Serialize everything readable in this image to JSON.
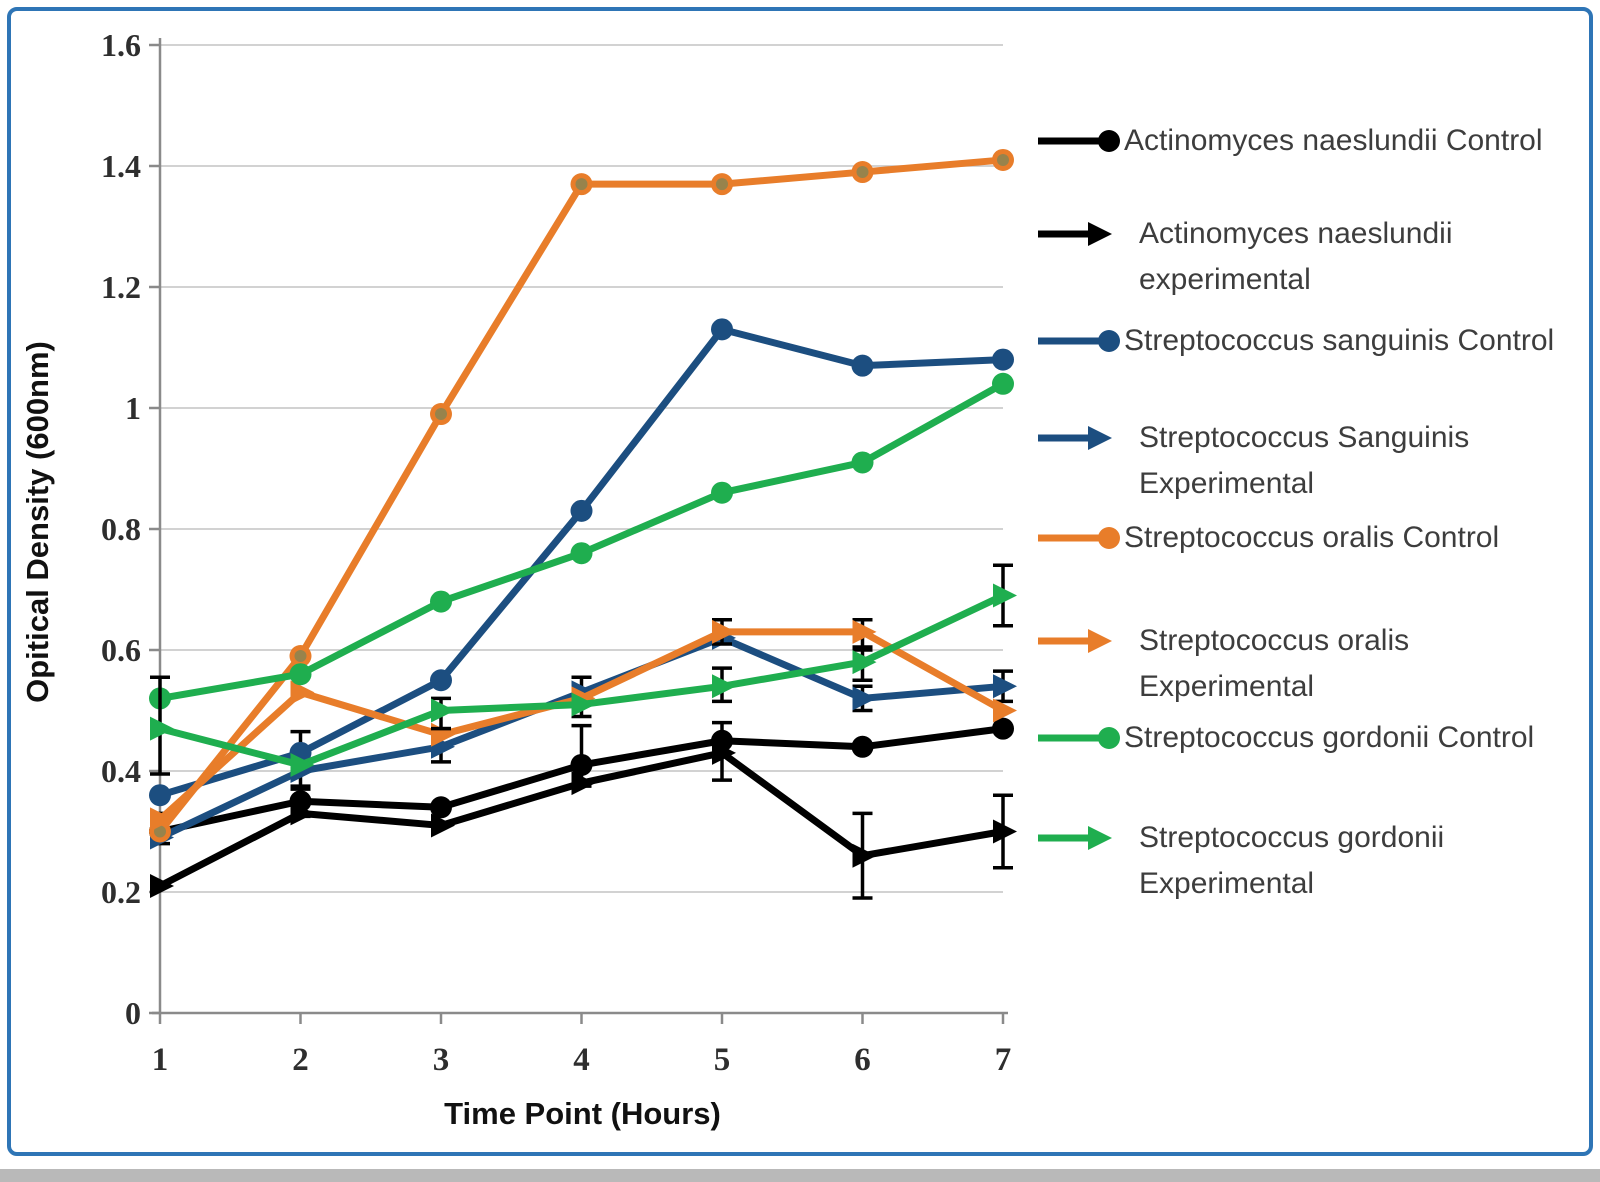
{
  "window": {
    "background": "#ffffff",
    "border_color": "#2E75B6",
    "bottom_shadow_color": "#b9b9b9"
  },
  "chart_data": {
    "type": "line",
    "title": "",
    "xlabel": "Time Point (Hours)",
    "ylabel": "Opitical Density (600nm)",
    "x": [
      1,
      2,
      3,
      4,
      5,
      6,
      7
    ],
    "x_tick_labels": [
      "1",
      "2",
      "3",
      "4",
      "5",
      "6",
      "7"
    ],
    "y_ticks": [
      0,
      0.2,
      0.4,
      0.6,
      0.8,
      1,
      1.2,
      1.4,
      1.6
    ],
    "y_tick_labels": [
      "0",
      "0.2",
      "0.4",
      "0.6",
      "0.8",
      "1",
      "1.2",
      "1.4",
      "1.6"
    ],
    "ylim": [
      0,
      1.6
    ],
    "grid": "horizontal",
    "legend_position": "right",
    "axis_color": "#8A8A8A",
    "gridline_color": "#C3C3C3",
    "error_bar_color": "#000000",
    "series": [
      {
        "name": "Actinomyces naeslundii Control",
        "color": "#000000",
        "marker": "circle",
        "values": [
          0.3,
          0.35,
          0.34,
          0.41,
          0.45,
          0.44,
          0.47
        ],
        "error_bars": [
          {
            "x": 1,
            "low": 0.28,
            "high": 0.33
          },
          {
            "x": 2,
            "low": 0.325,
            "high": 0.375
          },
          {
            "x": 4,
            "low": 0.375,
            "high": 0.475
          },
          {
            "x": 5,
            "low": 0.385,
            "high": 0.48
          }
        ]
      },
      {
        "name": "Actinomyces naeslundii experimental",
        "color": "#000000",
        "marker": "arrow",
        "values": [
          0.21,
          0.33,
          0.31,
          0.38,
          0.43,
          0.26,
          0.3
        ],
        "error_bars": [
          {
            "x": 6,
            "low": 0.19,
            "high": 0.33
          },
          {
            "x": 7,
            "low": 0.24,
            "high": 0.36
          }
        ]
      },
      {
        "name": "Streptococcus sanguinis Control",
        "color": "#1C4E80",
        "marker": "circle",
        "values": [
          0.36,
          0.43,
          0.55,
          0.83,
          1.13,
          1.07,
          1.08
        ],
        "error_bars": [
          {
            "x": 2,
            "low": 0.37,
            "high": 0.465
          }
        ]
      },
      {
        "name": "Streptococcus Sanguinis Experimental",
        "color": "#1C4E80",
        "marker": "arrow",
        "values": [
          0.29,
          0.4,
          0.44,
          0.53,
          0.62,
          0.52,
          0.54
        ],
        "error_bars": [
          {
            "x": 3,
            "low": 0.415,
            "high": 0.47
          },
          {
            "x": 4,
            "low": 0.49,
            "high": 0.555
          },
          {
            "x": 6,
            "low": 0.5,
            "high": 0.54
          },
          {
            "x": 7,
            "low": 0.515,
            "high": 0.565
          }
        ]
      },
      {
        "name": "Streptococcus oralis Control",
        "color": "#E87D2A",
        "marker": "circle",
        "marker_inner": "#97834C",
        "values": [
          0.3,
          0.59,
          0.99,
          1.37,
          1.37,
          1.39,
          1.41
        ],
        "error_bars": []
      },
      {
        "name": "Streptococcus oralis Experimental",
        "color": "#E87D2A",
        "marker": "arrow",
        "values": [
          0.32,
          0.53,
          0.46,
          0.52,
          0.63,
          0.63,
          0.5
        ],
        "error_bars": [
          {
            "x": 5,
            "low": 0.61,
            "high": 0.65
          },
          {
            "x": 6,
            "low": 0.605,
            "high": 0.65
          }
        ]
      },
      {
        "name": "Streptococcus gordonii Control",
        "color": "#1FAE4F",
        "marker": "circle",
        "values": [
          0.52,
          0.56,
          0.68,
          0.76,
          0.86,
          0.91,
          1.04
        ],
        "error_bars": []
      },
      {
        "name": "Streptococcus gordonii Experimental",
        "color": "#1FAE4F",
        "marker": "arrow",
        "values": [
          0.47,
          0.41,
          0.5,
          0.51,
          0.54,
          0.58,
          0.69
        ],
        "error_bars": [
          {
            "x": 1,
            "low": 0.395,
            "high": 0.555
          },
          {
            "x": 3,
            "low": 0.47,
            "high": 0.52
          },
          {
            "x": 5,
            "low": 0.515,
            "high": 0.57
          },
          {
            "x": 6,
            "low": 0.55,
            "high": 0.6
          },
          {
            "x": 7,
            "low": 0.64,
            "high": 0.74
          }
        ]
      }
    ]
  },
  "legend": {
    "items": [
      {
        "series": 0,
        "lines": [
          "Actinomyces naeslundii Control"
        ]
      },
      {
        "series": 1,
        "lines": [
          "Actinomyces naeslundii",
          "experimental"
        ]
      },
      {
        "series": 2,
        "lines": [
          "Streptococcus sanguinis Control"
        ]
      },
      {
        "series": 3,
        "lines": [
          "Streptococcus Sanguinis",
          "Experimental"
        ]
      },
      {
        "series": 4,
        "lines": [
          "Streptococcus oralis Control"
        ]
      },
      {
        "series": 5,
        "lines": [
          "Streptococcus oralis",
          "Experimental"
        ]
      },
      {
        "series": 6,
        "lines": [
          "Streptococcus gordonii Control"
        ]
      },
      {
        "series": 7,
        "lines": [
          "Streptococcus gordonii",
          "Experimental"
        ]
      }
    ]
  }
}
